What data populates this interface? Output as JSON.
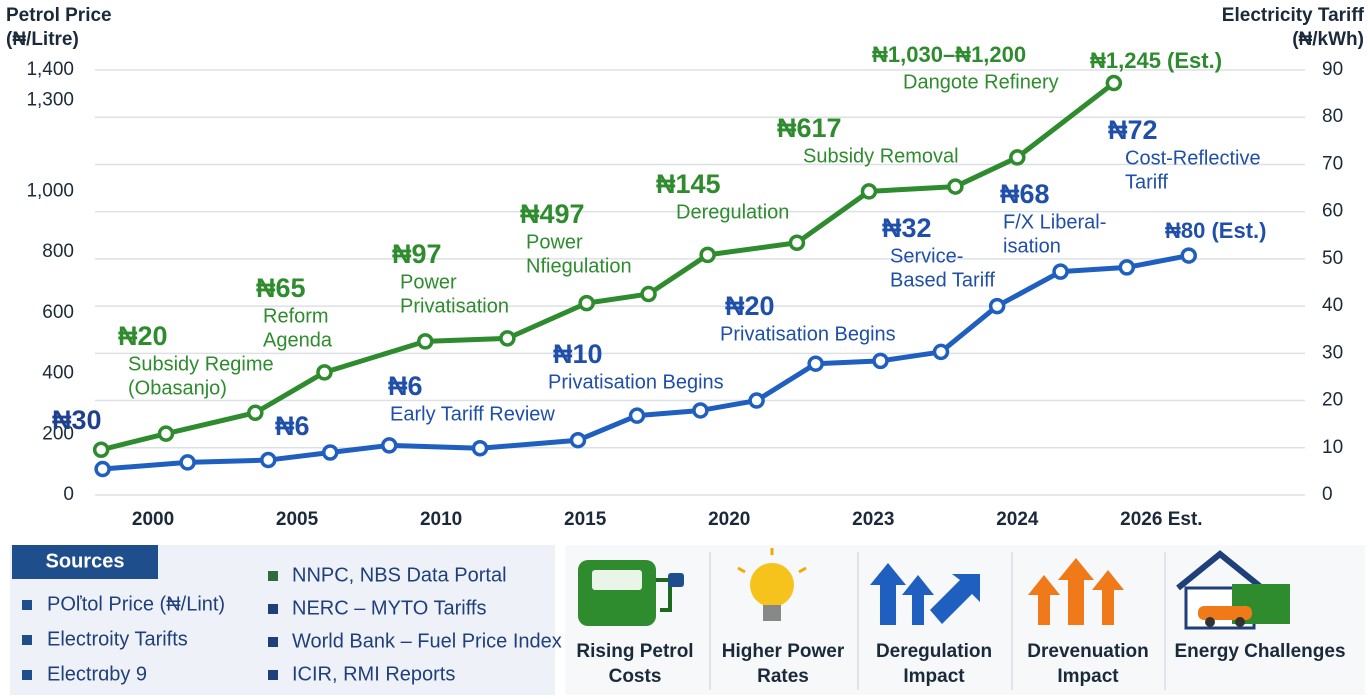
{
  "chart_data": {
    "type": "line",
    "y_label": [
      "Petrol Price",
      "(₦/Litre)"
    ],
    "y2_label": [
      "Electricity Tariff",
      "(₦/kWh)"
    ],
    "xlim": [
      -0.5,
      7.4
    ],
    "xticks": [
      {
        "value": 0,
        "label": "2000"
      },
      {
        "value": 1,
        "label": "2005"
      },
      {
        "value": 2,
        "label": "2010"
      },
      {
        "value": 3,
        "label": "2015"
      },
      {
        "value": 4,
        "label": "2020"
      },
      {
        "value": 5,
        "label": "2023"
      },
      {
        "value": 6,
        "label": "2024"
      },
      {
        "value": 7,
        "label": "2026 Est."
      }
    ],
    "ylim": [
      0,
      1400
    ],
    "yticks": [
      0,
      200,
      400,
      600,
      800,
      {
        "value": 1000,
        "label": "1,000"
      },
      {
        "value": 1300,
        "label": "1,300"
      },
      {
        "value": 1400,
        "label": "1,400"
      }
    ],
    "y2lim": [
      0,
      90
    ],
    "y2ticks": [
      0,
      10,
      20,
      30,
      40,
      50,
      60,
      70,
      80,
      90
    ],
    "grid": true,
    "series": [
      {
        "color": "#2e8b2e",
        "x": [
          -0.36,
          0.09,
          0.71,
          1.19,
          1.89,
          2.46,
          3.01,
          3.44,
          3.85,
          4.47,
          4.97,
          5.57,
          6.0,
          6.67
        ],
        "values": [
          149,
          202,
          271,
          404,
          506,
          516,
          632,
          662,
          791,
          831,
          1000,
          1016,
          1112,
          1357
        ]
      },
      {
        "color": "#1f5fbf",
        "axis": "y2",
        "x": [
          -0.35,
          0.24,
          0.8,
          1.23,
          1.64,
          2.27,
          2.95,
          3.36,
          3.8,
          4.19,
          4.6,
          5.05,
          5.47,
          5.86,
          6.3,
          6.76,
          7.19
        ],
        "values": [
          5.5,
          6.9,
          7.4,
          9.0,
          10.5,
          9.9,
          11.6,
          16.8,
          17.9,
          20.0,
          27.8,
          28.4,
          30.3,
          40.0,
          47.3,
          48.2,
          50.7
        ]
      }
    ],
    "annotations": [
      {
        "color": "#1f3f8f",
        "value": "₦30",
        "lines": []
      },
      {
        "color": "#2e8b2e",
        "value": "₦20",
        "lines": [
          "Subsidy Regime",
          "(Obasanjo)"
        ]
      },
      {
        "color": "#2e8b2e",
        "value": "₦65",
        "lines": [
          "Reform",
          "Agenda"
        ]
      },
      {
        "color": "#2e8b2e",
        "value": "₦97",
        "lines": [
          "Power",
          "Privatisation"
        ]
      },
      {
        "color": "#2e8b2e",
        "value": "₦497",
        "lines": [
          "Power",
          "Nfiegulation"
        ]
      },
      {
        "color": "#2e8b2e",
        "value": "₦145",
        "lines": [
          "Deregulation"
        ]
      },
      {
        "color": "#2e8b2e",
        "value": "₦617",
        "lines": [
          "Subsidy Removal"
        ]
      },
      {
        "color": "#2e8b2e",
        "value": "₦1,030–₦1,200",
        "lines": [
          "Dangote Refinery"
        ]
      },
      {
        "color": "#2e8b2e",
        "value": "₦1,245 (Est.)",
        "lines": []
      },
      {
        "color": "#1f4fa8",
        "value": "₦6",
        "lines": []
      },
      {
        "color": "#1f4fa8",
        "value": "₦6",
        "lines": [
          "Early Tariff Review"
        ]
      },
      {
        "color": "#1f4fa8",
        "value": "₦10",
        "lines": [
          "Privatisation Begins"
        ]
      },
      {
        "color": "#1f4fa8",
        "value": "₦20",
        "lines": [
          "Privatisation Begins"
        ]
      },
      {
        "color": "#1f4fa8",
        "value": "₦32",
        "lines": [
          "Service-",
          "Based Tariff"
        ]
      },
      {
        "color": "#1f4fa8",
        "value": "₦68",
        "lines": [
          "F/X  Liberal-",
          "isation"
        ]
      },
      {
        "color": "#1f4fa8",
        "value": "₦72",
        "lines": [
          "Cost-Reflective",
          "Tariff"
        ]
      },
      {
        "color": "#1f4fa8",
        "value": "₦80 (Est.)",
        "lines": []
      }
    ]
  },
  "sources": {
    "title": "Sources",
    "left": [
      "POľtol Price (₦/Lint)",
      "Electroity Tarifts",
      "Electrɑby 9"
    ],
    "right": [
      "NNPC, NBS Data Portal",
      "NERC – MYTO Tariffs",
      "World Bank – Fuel Price Index",
      "ICIR, RMI Reports"
    ]
  },
  "cards": [
    {
      "lines": [
        "Rising Petrol",
        "Costs"
      ]
    },
    {
      "lines": [
        "Higher Power",
        "Rates"
      ]
    },
    {
      "lines": [
        "Deregulation",
        "Impact"
      ]
    },
    {
      "lines": [
        "Drevenuation",
        "Impact"
      ]
    },
    {
      "lines": [
        "Energy Challenges"
      ]
    }
  ]
}
